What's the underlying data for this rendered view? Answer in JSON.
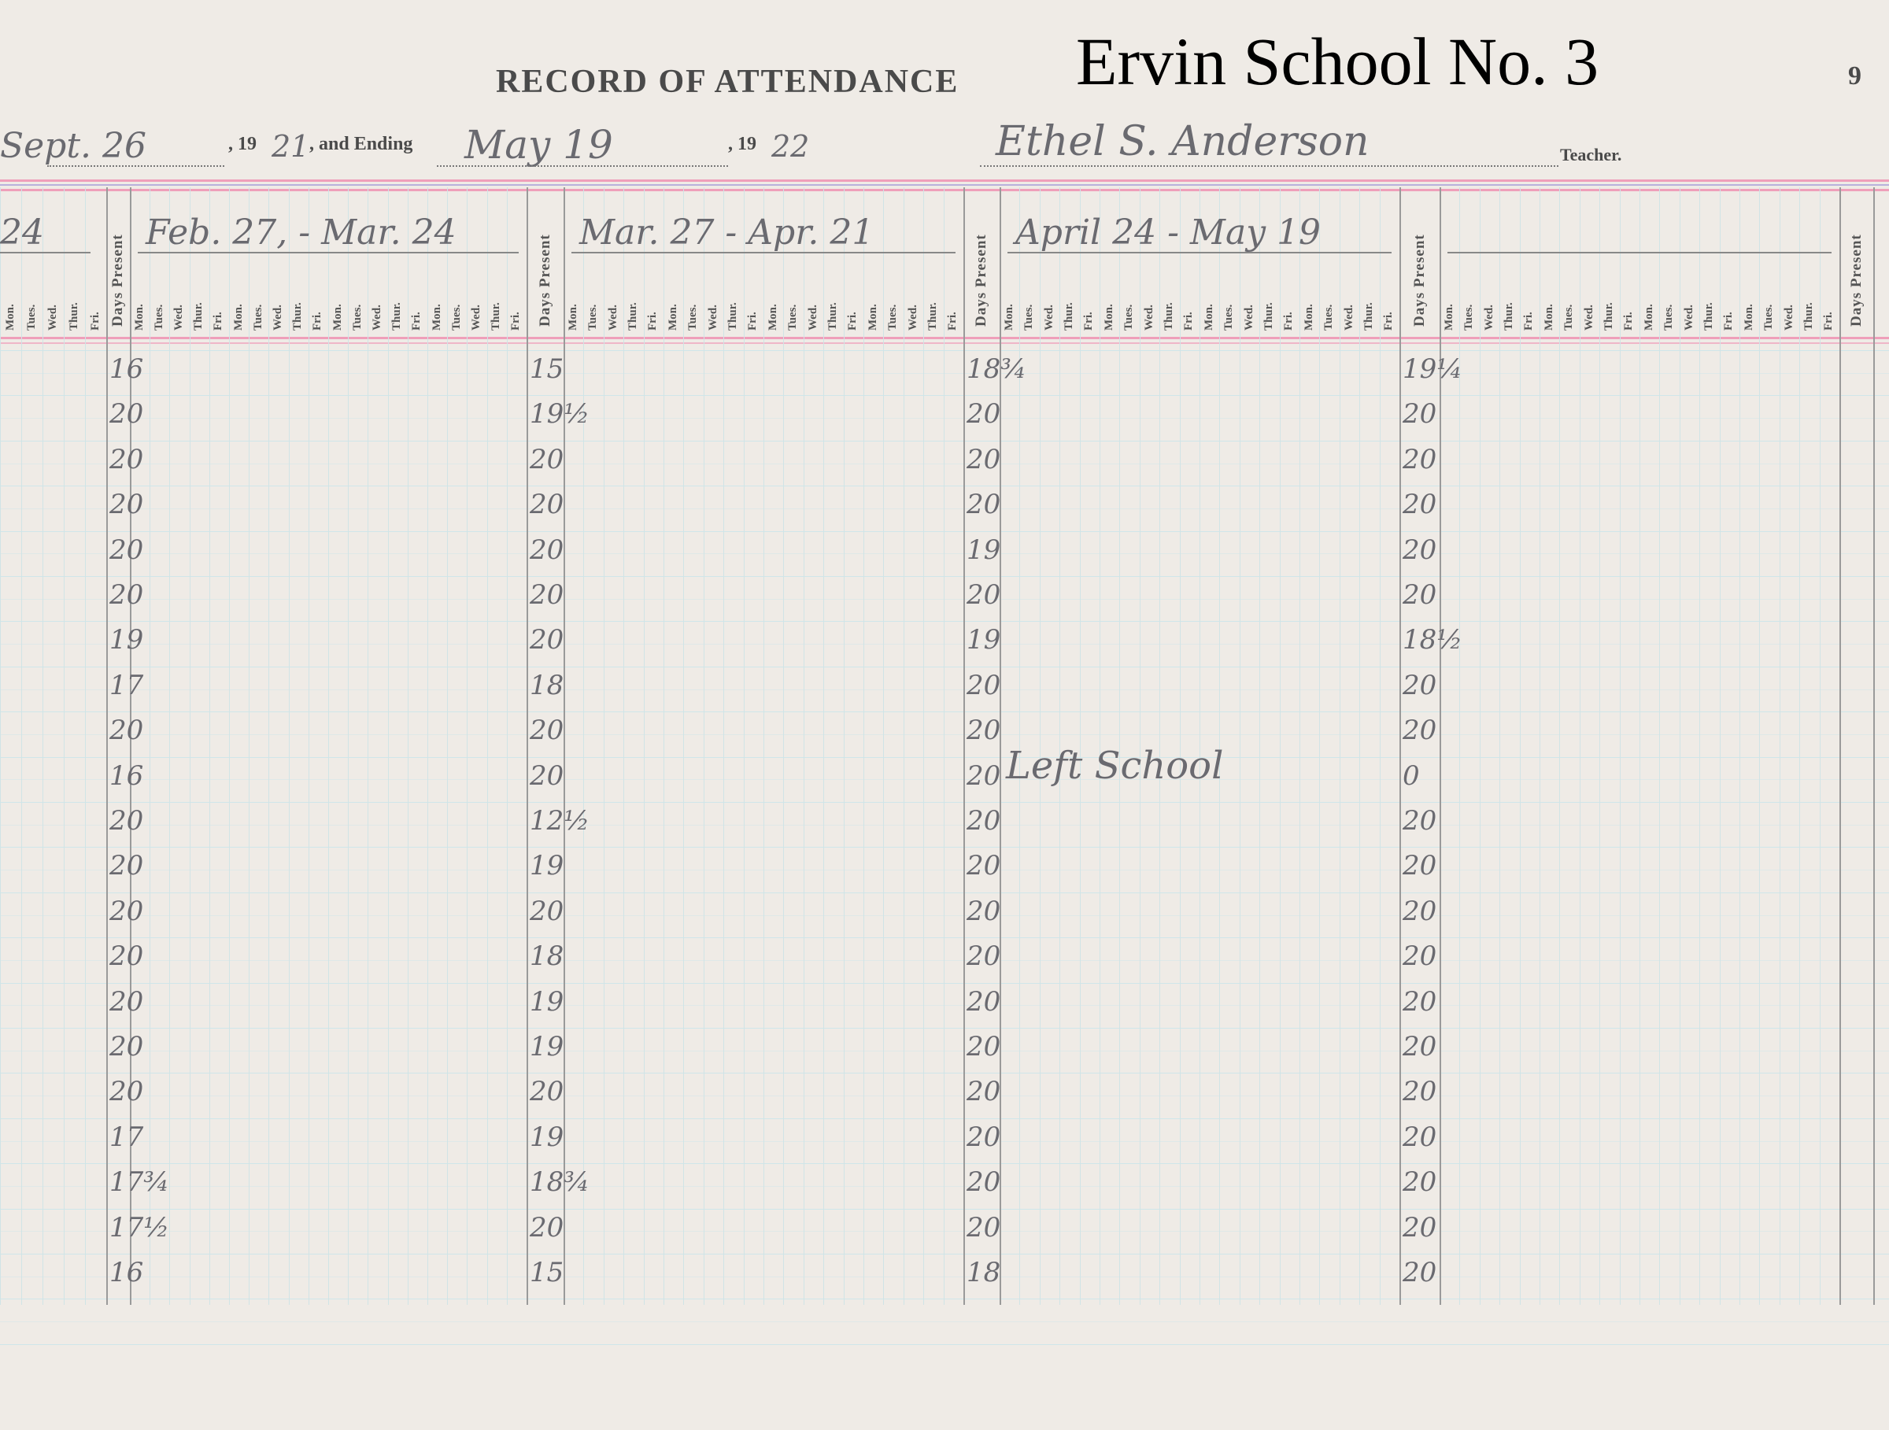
{
  "header": {
    "title": "RECORD OF ATTENDANCE",
    "school": "Ervin School No. 3",
    "page_number": "9",
    "start_date": "Sept. 26",
    "start_year_prefix": ", 19",
    "start_year_suffix": "21",
    "and_ending": ", and Ending",
    "end_date": "May 19",
    "end_year_prefix": ", 19",
    "end_year_suffix": "22",
    "teacher_name": "Ethel S. Anderson",
    "teacher_label": "Teacher."
  },
  "days_present_label": "Days Present",
  "weekdays": [
    "Mon.",
    "Tues.",
    "Wed.",
    "Thur.",
    "Fri."
  ],
  "periods": [
    {
      "range": "24"
    },
    {
      "range": "Feb. 27, - Mar. 24"
    },
    {
      "range": "Mar. 27 - Apr. 21"
    },
    {
      "range": "April 24 - May 19"
    },
    {
      "range": ""
    }
  ],
  "rows": [
    [
      "16",
      "15",
      "18¾",
      "19¼"
    ],
    [
      "20",
      "19½",
      "20",
      "20"
    ],
    [
      "20",
      "20",
      "20",
      "20"
    ],
    [
      "20",
      "20",
      "20",
      "20"
    ],
    [
      "20",
      "20",
      "19",
      "20"
    ],
    [
      "20",
      "20",
      "20",
      "20"
    ],
    [
      "19",
      "20",
      "19",
      "18½"
    ],
    [
      "17",
      "18",
      "20",
      "20"
    ],
    [
      "20",
      "20",
      "20",
      "20"
    ],
    [
      "16",
      "20",
      "20",
      "0"
    ],
    [
      "20",
      "12½",
      "20",
      "20"
    ],
    [
      "20",
      "19",
      "20",
      "20"
    ],
    [
      "20",
      "20",
      "20",
      "20"
    ],
    [
      "20",
      "18",
      "20",
      "20"
    ],
    [
      "20",
      "19",
      "20",
      "20"
    ],
    [
      "20",
      "19",
      "20",
      "20"
    ],
    [
      "20",
      "20",
      "20",
      "20"
    ],
    [
      "17",
      "19",
      "20",
      "20"
    ],
    [
      "17¾",
      "18¾",
      "20",
      "20"
    ],
    [
      "17½",
      "20",
      "20",
      "20"
    ],
    [
      "16",
      "15",
      "18",
      "20"
    ]
  ],
  "notes": {
    "left_school": "Left School"
  }
}
